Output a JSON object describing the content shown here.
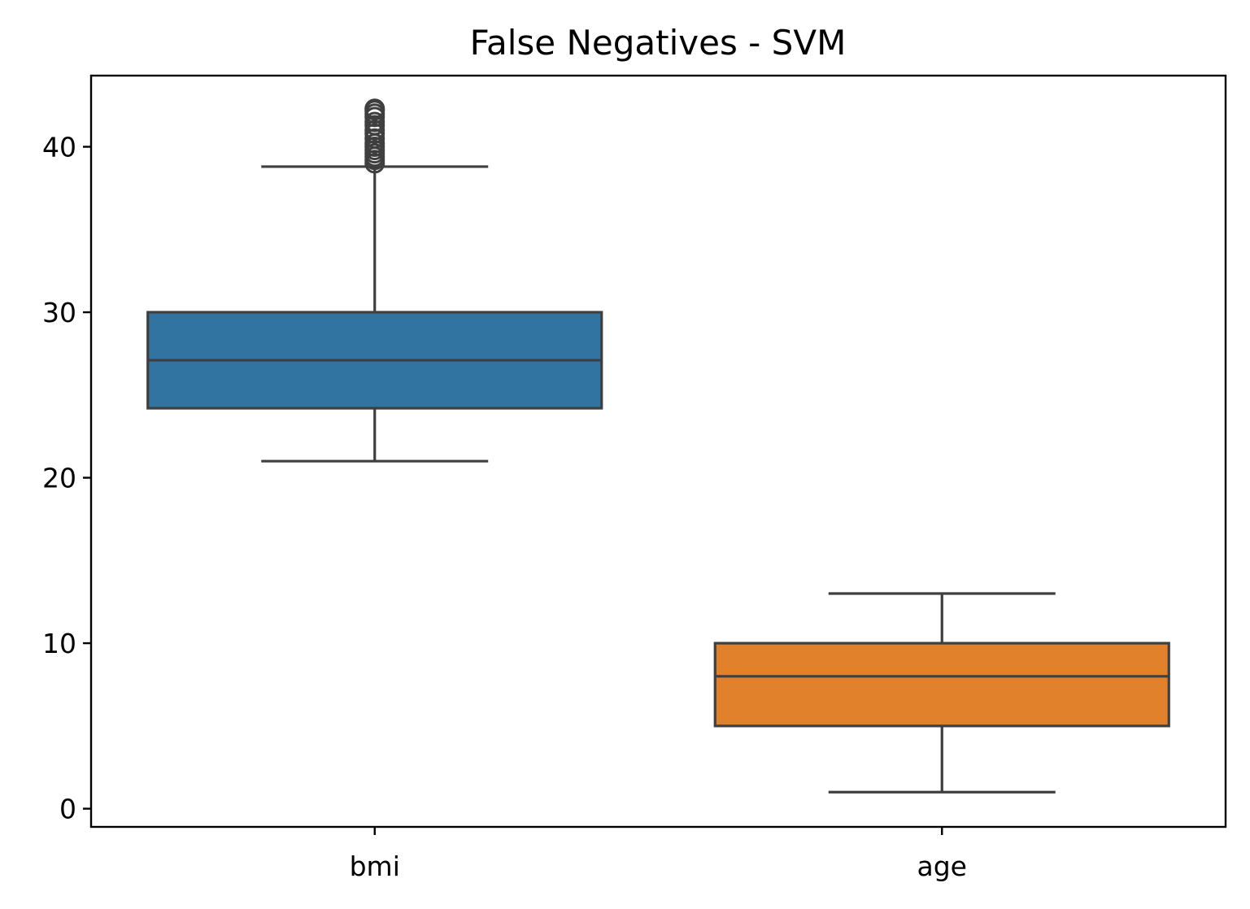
{
  "chart_data": {
    "type": "box",
    "title": "False Negatives - SVM",
    "xlabel": "",
    "ylabel": "",
    "categories": [
      "bmi",
      "age"
    ],
    "ylim": [
      -1.1,
      44.3
    ],
    "y_ticks": [
      0,
      10,
      20,
      30,
      40
    ],
    "grid": false,
    "legend": "none",
    "series": [
      {
        "category": "bmi",
        "color": "#3274a1",
        "whisker_low": 21.0,
        "q1": 24.2,
        "median": 27.1,
        "q3": 30.0,
        "whisker_high": 38.8,
        "outliers": [
          39.0,
          39.2,
          39.4,
          39.6,
          39.8,
          40.0,
          40.2,
          40.5,
          40.8,
          41.0,
          41.3,
          41.5,
          41.8,
          42.0,
          42.2,
          42.3
        ]
      },
      {
        "category": "age",
        "color": "#e1812c",
        "whisker_low": 1.0,
        "q1": 5.0,
        "median": 8.0,
        "q3": 10.0,
        "whisker_high": 13.0,
        "outliers": []
      }
    ]
  }
}
